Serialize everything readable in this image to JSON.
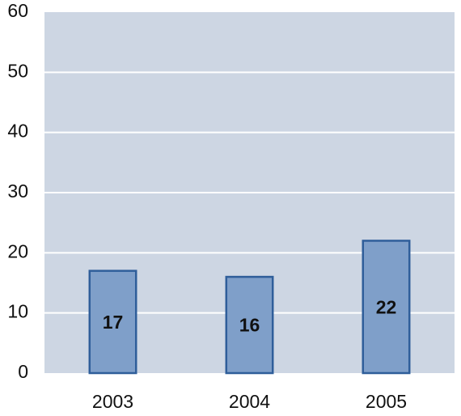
{
  "chart_data": {
    "type": "bar",
    "categories": [
      "2003",
      "2004",
      "2005"
    ],
    "values": [
      17,
      16,
      22
    ],
    "color": "#7f9fc9",
    "ylim": [
      0,
      60
    ],
    "yticks": [
      0,
      10,
      20,
      30,
      40,
      50,
      60
    ],
    "grid": true
  }
}
